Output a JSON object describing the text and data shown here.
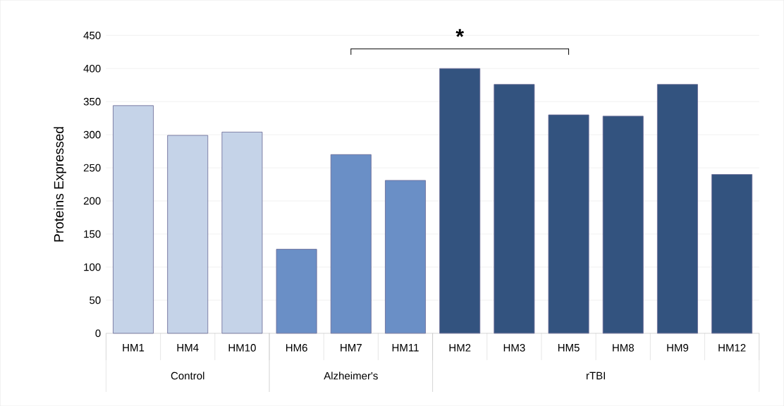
{
  "chart_data": {
    "type": "bar",
    "ylabel": "Proteins Expressed",
    "categories": [
      "HM1",
      "HM4",
      "HM10",
      "HM6",
      "HM7",
      "HM11",
      "HM2",
      "HM3",
      "HM5",
      "HM8",
      "HM9",
      "HM12"
    ],
    "values": [
      344,
      299,
      304,
      127,
      270,
      231,
      400,
      376,
      330,
      328,
      376,
      240
    ],
    "colors": [
      "#c5d3e8",
      "#c5d3e8",
      "#c5d3e8",
      "#6a8fc6",
      "#6a8fc6",
      "#6a8fc6",
      "#33537f",
      "#33537f",
      "#33537f",
      "#33537f",
      "#33537f",
      "#33537f"
    ],
    "ylim": [
      0,
      450
    ],
    "yticks": [
      0,
      50,
      100,
      150,
      200,
      250,
      300,
      350,
      400,
      450
    ],
    "grid": "y",
    "annotations": [
      "*",
      "Control",
      "Alzheimer's",
      "rTBI"
    ]
  }
}
